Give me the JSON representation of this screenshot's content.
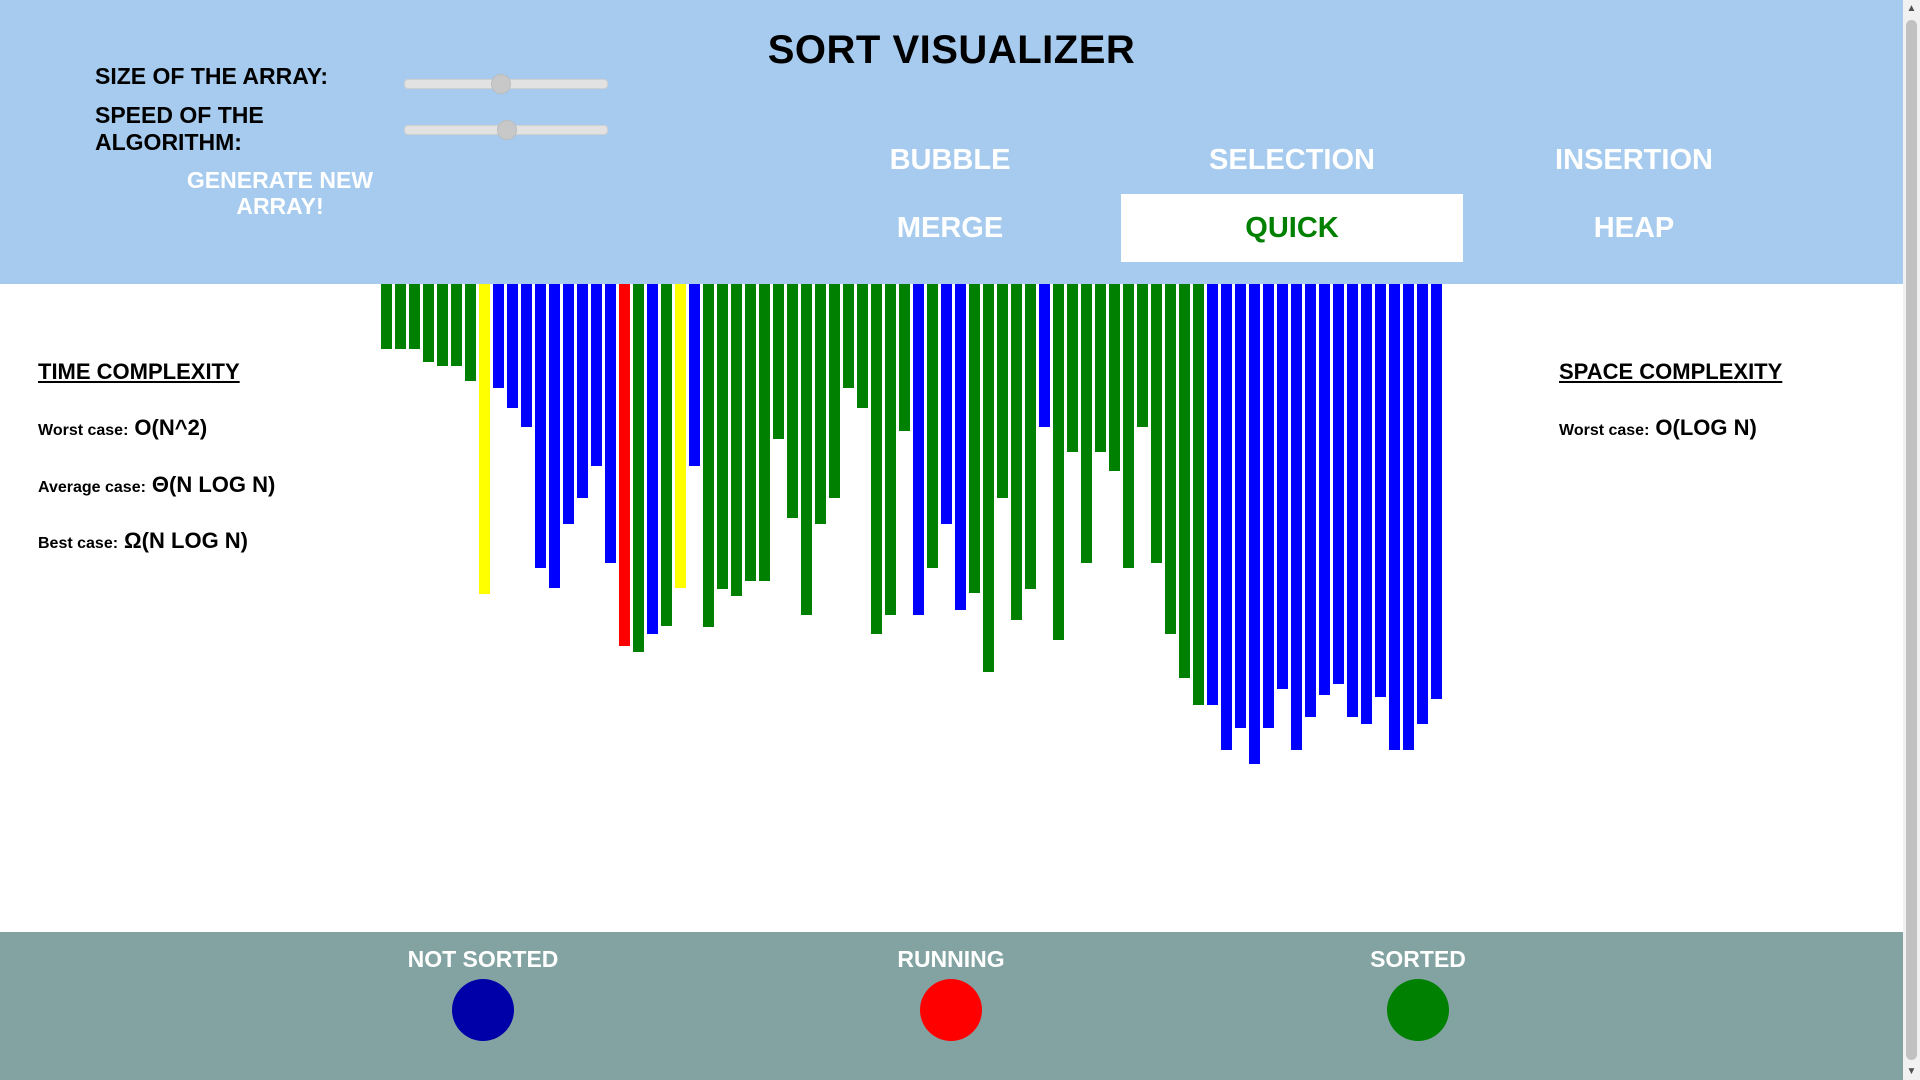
{
  "header": {
    "title": "SORT VISUALIZER",
    "size_label": "SIZE OF THE ARRAY:",
    "speed_label": "SPEED OF THE ALGORITHM:",
    "size_value": 0.47,
    "speed_value": 0.5,
    "generate_label": "GENERATE NEW ARRAY!"
  },
  "algorithms": [
    {
      "label": "BUBBLE",
      "active": false
    },
    {
      "label": "SELECTION",
      "active": false
    },
    {
      "label": "INSERTION",
      "active": false
    },
    {
      "label": "MERGE",
      "active": false
    },
    {
      "label": "QUICK",
      "active": true
    },
    {
      "label": "HEAP",
      "active": false
    }
  ],
  "time_complexity": {
    "heading": "TIME COMPLEXITY",
    "worst_label": "Worst case:",
    "worst_value": "O(N^2)",
    "average_label": "Average case:",
    "average_value": "Θ(N LOG N)",
    "best_label": "Best case:",
    "best_value": "Ω(N LOG N)"
  },
  "space_complexity": {
    "heading": "SPACE COMPLEXITY",
    "worst_label": "Worst case:",
    "worst_value": "O(LOG N)"
  },
  "colors": {
    "not_sorted": "#0000ff",
    "running": "#ff0000",
    "pivot": "#ffff00",
    "sorted": "#008000",
    "legend_not_sorted": "#0000a8",
    "legend_running": "#ff0000",
    "legend_sorted": "#008000"
  },
  "array": [
    {
      "value": 65,
      "state": "sorted"
    },
    {
      "value": 65,
      "state": "sorted"
    },
    {
      "value": 65,
      "state": "sorted"
    },
    {
      "value": 78,
      "state": "sorted"
    },
    {
      "value": 82,
      "state": "sorted"
    },
    {
      "value": 82,
      "state": "sorted"
    },
    {
      "value": 97,
      "state": "sorted"
    },
    {
      "value": 310,
      "state": "pivot"
    },
    {
      "value": 104,
      "state": "not_sorted"
    },
    {
      "value": 124,
      "state": "not_sorted"
    },
    {
      "value": 143,
      "state": "not_sorted"
    },
    {
      "value": 284,
      "state": "not_sorted"
    },
    {
      "value": 304,
      "state": "not_sorted"
    },
    {
      "value": 240,
      "state": "not_sorted"
    },
    {
      "value": 214,
      "state": "not_sorted"
    },
    {
      "value": 182,
      "state": "not_sorted"
    },
    {
      "value": 279,
      "state": "not_sorted"
    },
    {
      "value": 362,
      "state": "running"
    },
    {
      "value": 368,
      "state": "sorted"
    },
    {
      "value": 350,
      "state": "not_sorted"
    },
    {
      "value": 342,
      "state": "sorted"
    },
    {
      "value": 304,
      "state": "pivot"
    },
    {
      "value": 182,
      "state": "not_sorted"
    },
    {
      "value": 343,
      "state": "sorted"
    },
    {
      "value": 305,
      "state": "sorted"
    },
    {
      "value": 312,
      "state": "sorted"
    },
    {
      "value": 297,
      "state": "sorted"
    },
    {
      "value": 297,
      "state": "sorted"
    },
    {
      "value": 155,
      "state": "sorted"
    },
    {
      "value": 234,
      "state": "sorted"
    },
    {
      "value": 331,
      "state": "sorted"
    },
    {
      "value": 240,
      "state": "sorted"
    },
    {
      "value": 214,
      "state": "sorted"
    },
    {
      "value": 104,
      "state": "sorted"
    },
    {
      "value": 124,
      "state": "sorted"
    },
    {
      "value": 350,
      "state": "sorted"
    },
    {
      "value": 331,
      "state": "sorted"
    },
    {
      "value": 147,
      "state": "sorted"
    },
    {
      "value": 331,
      "state": "not_sorted"
    },
    {
      "value": 284,
      "state": "sorted"
    },
    {
      "value": 240,
      "state": "not_sorted"
    },
    {
      "value": 326,
      "state": "not_sorted"
    },
    {
      "value": 309,
      "state": "sorted"
    },
    {
      "value": 388,
      "state": "sorted"
    },
    {
      "value": 214,
      "state": "sorted"
    },
    {
      "value": 336,
      "state": "sorted"
    },
    {
      "value": 305,
      "state": "sorted"
    },
    {
      "value": 143,
      "state": "not_sorted"
    },
    {
      "value": 356,
      "state": "sorted"
    },
    {
      "value": 168,
      "state": "sorted"
    },
    {
      "value": 279,
      "state": "sorted"
    },
    {
      "value": 168,
      "state": "sorted"
    },
    {
      "value": 187,
      "state": "sorted"
    },
    {
      "value": 284,
      "state": "sorted"
    },
    {
      "value": 143,
      "state": "sorted"
    },
    {
      "value": 279,
      "state": "sorted"
    },
    {
      "value": 350,
      "state": "sorted"
    },
    {
      "value": 394,
      "state": "sorted"
    },
    {
      "value": 421,
      "state": "sorted"
    },
    {
      "value": 421,
      "state": "not_sorted"
    },
    {
      "value": 466,
      "state": "not_sorted"
    },
    {
      "value": 444,
      "state": "not_sorted"
    },
    {
      "value": 480,
      "state": "not_sorted"
    },
    {
      "value": 444,
      "state": "not_sorted"
    },
    {
      "value": 405,
      "state": "not_sorted"
    },
    {
      "value": 466,
      "state": "not_sorted"
    },
    {
      "value": 433,
      "state": "not_sorted"
    },
    {
      "value": 411,
      "state": "not_sorted"
    },
    {
      "value": 400,
      "state": "not_sorted"
    },
    {
      "value": 433,
      "state": "not_sorted"
    },
    {
      "value": 440,
      "state": "not_sorted"
    },
    {
      "value": 413,
      "state": "not_sorted"
    },
    {
      "value": 466,
      "state": "not_sorted"
    },
    {
      "value": 466,
      "state": "not_sorted"
    },
    {
      "value": 440,
      "state": "not_sorted"
    },
    {
      "value": 415,
      "state": "not_sorted"
    }
  ],
  "legend": {
    "not_sorted_label": "NOT SORTED",
    "running_label": "RUNNING",
    "sorted_label": "SORTED"
  }
}
